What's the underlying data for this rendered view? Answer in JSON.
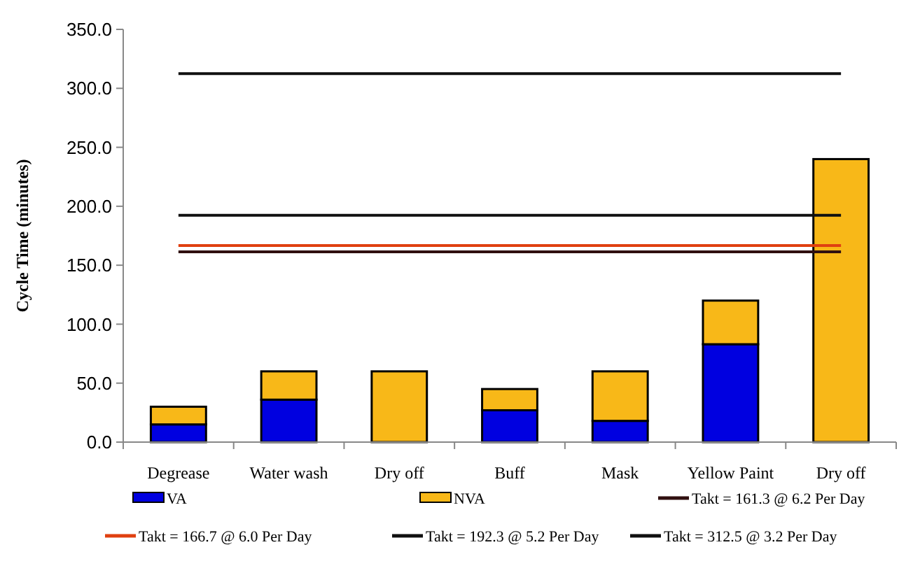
{
  "chart_data": {
    "type": "bar",
    "ylabel": "Cycle Time (minutes)",
    "categories": [
      "Degrease",
      "Water wash",
      "Dry off",
      "Buff",
      "Mask",
      "Yellow Paint",
      "Dry off"
    ],
    "stacked": true,
    "ylim": [
      0,
      350
    ],
    "yticks": [
      {
        "value": 0,
        "label": "0.0"
      },
      {
        "value": 50,
        "label": "50.0"
      },
      {
        "value": 100,
        "label": "100.0"
      },
      {
        "value": 150,
        "label": "150.0"
      },
      {
        "value": 200,
        "label": "200.0"
      },
      {
        "value": 250,
        "label": "250.0"
      },
      {
        "value": 300,
        "label": "300.0"
      },
      {
        "value": 350,
        "label": "350.0"
      }
    ],
    "grid": false,
    "legend": "bottom",
    "series": [
      {
        "name": "VA",
        "color": "#0000e0",
        "values": [
          15,
          36,
          0,
          27,
          18,
          83,
          0
        ]
      },
      {
        "name": "NVA",
        "color": "#f8b818",
        "values": [
          15,
          24,
          60,
          18,
          42,
          37,
          240
        ]
      },
      {
        "type": "line",
        "name": "Takt = 161.3 @ 6.2 Per Day",
        "color": "#301010",
        "values": [
          161.3,
          161.3,
          161.3,
          161.3,
          161.3,
          161.3,
          161.3
        ]
      },
      {
        "type": "line",
        "name": "Takt = 166.7 @ 6.0 Per Day",
        "color": "#e04010",
        "values": [
          166.7,
          166.7,
          166.7,
          166.7,
          166.7,
          166.7,
          166.7
        ]
      },
      {
        "type": "line",
        "name": "Takt = 192.3 @ 5.2 Per Day",
        "color": "#101010",
        "values": [
          192.3,
          192.3,
          192.3,
          192.3,
          192.3,
          192.3,
          192.3
        ]
      },
      {
        "type": "line",
        "name": "Takt = 312.5 @ 3.2 Per Day",
        "color": "#101010",
        "values": [
          312.5,
          312.5,
          312.5,
          312.5,
          312.5,
          312.5,
          312.5
        ]
      }
    ]
  }
}
